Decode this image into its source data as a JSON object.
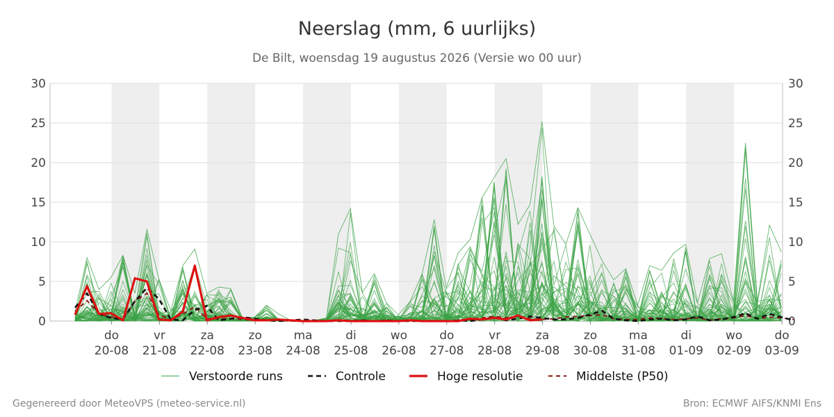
{
  "chart_data": {
    "type": "line",
    "title": "Neerslag (mm, 6 uurlijks)",
    "subtitle": "De Bilt, woensdag 19 augustus 2026 (Versie wo 00 uur)",
    "ylim": [
      0,
      30
    ],
    "y_ticks": [
      0,
      5,
      10,
      15,
      20,
      25,
      30
    ],
    "x_range_days": [
      0,
      14.58
    ],
    "day_ticks": [
      {
        "day": "do",
        "date": "20-08"
      },
      {
        "day": "vr",
        "date": "21-08"
      },
      {
        "day": "za",
        "date": "22-08"
      },
      {
        "day": "zo",
        "date": "23-08"
      },
      {
        "day": "ma",
        "date": "24-08"
      },
      {
        "day": "di",
        "date": "25-08"
      },
      {
        "day": "wo",
        "date": "26-08"
      },
      {
        "day": "do",
        "date": "27-08"
      },
      {
        "day": "vr",
        "date": "28-08"
      },
      {
        "day": "za",
        "date": "29-08"
      },
      {
        "day": "zo",
        "date": "30-08"
      },
      {
        "day": "ma",
        "date": "31-08"
      },
      {
        "day": "di",
        "date": "01-09"
      },
      {
        "day": "wo",
        "date": "02-09"
      },
      {
        "day": "do",
        "date": "03-09"
      }
    ],
    "weekend_shading": true,
    "grid": true,
    "legend_position": "bottom",
    "series": [
      {
        "name": "Verstoorde runs",
        "role": "ensemble",
        "count": 50,
        "color": "#3aa345",
        "envelope_max": [
          1.2,
          8.0,
          4.0,
          5.5,
          8.3,
          3.5,
          11.6,
          5.3,
          1.3,
          7.0,
          9.1,
          3.5,
          4.3,
          4.1,
          0.3,
          0.5,
          2.0,
          0.9,
          0.1,
          0.1,
          0.1,
          0.4,
          11.0,
          14.2,
          3.6,
          6.0,
          2.3,
          0.8,
          2.5,
          6.0,
          12.8,
          4.2,
          8.6,
          10.3,
          15.6,
          18.1,
          20.5,
          12.2,
          14.7,
          25.2,
          12.0,
          9.7,
          14.3,
          11.0,
          7.7,
          5.2,
          6.6,
          2.0,
          7.0,
          6.4,
          8.6,
          9.7,
          2.3,
          7.9,
          8.5,
          2.5,
          22.5,
          2.5,
          12.1,
          8.7
        ]
      },
      {
        "name": "Controle",
        "role": "control",
        "color": "#111111",
        "values": [
          1.7,
          3.5,
          0.9,
          0.4,
          0.2,
          2.5,
          4.2,
          2.8,
          0.2,
          0.1,
          1.4,
          1.9,
          0.1,
          0.3,
          0.5,
          0.3,
          0.1,
          0.0,
          0.1,
          0.2,
          0.1,
          0.0,
          0.0,
          0.0,
          0.1,
          0.0,
          0.1,
          0.0,
          0.0,
          0.0,
          0.0,
          0.0,
          0.1,
          0.0,
          0.2,
          0.5,
          0.1,
          0.3,
          0.6,
          0.4,
          0.2,
          0.2,
          0.4,
          0.8,
          1.3,
          0.3,
          0.1,
          0.0,
          0.2,
          0.3,
          0.1,
          0.2,
          0.6,
          0.1,
          0.2,
          0.5,
          1.0,
          0.3,
          0.9,
          0.5,
          0.1
        ]
      },
      {
        "name": "Hoge resolutie",
        "role": "hires",
        "color": "#dd1111",
        "values": [
          0.8,
          4.4,
          0.9,
          1.0,
          0.1,
          5.4,
          5.0,
          0.2,
          0.1,
          1.2,
          7.0,
          0.1,
          0.5,
          0.7,
          0.4,
          0.1,
          0.1,
          0.2,
          0.1,
          0.0,
          0.0,
          0.0,
          0.1,
          0.0,
          0.0,
          0.0,
          0.0,
          0.0,
          0.1,
          0.0,
          0.0,
          0.0,
          0.0,
          0.3,
          0.2,
          0.4,
          0.2,
          0.7,
          0.1,
          0.2
        ]
      },
      {
        "name": "Middelste (P50)",
        "role": "median",
        "color": "#8b1a1a",
        "values": [
          1.2,
          2.6,
          0.9,
          0.5,
          0.3,
          2.5,
          3.5,
          0.8,
          0.2,
          0.9,
          1.8,
          0.3,
          0.3,
          0.3,
          0.2,
          0.1,
          0.1,
          0.1,
          0.0,
          0.0,
          0.0,
          0.0,
          0.1,
          0.0,
          0.1,
          0.0,
          0.1,
          0.0,
          0.0,
          0.0,
          0.1,
          0.0,
          0.1,
          0.2,
          0.4,
          0.6,
          0.4,
          0.6,
          0.3,
          0.2,
          0.3,
          0.5,
          0.6,
          0.7,
          0.8,
          0.3,
          0.2,
          0.2,
          0.4,
          0.3,
          0.2,
          0.3,
          0.4,
          0.1,
          0.3,
          0.4,
          0.7,
          0.3,
          0.5,
          0.4,
          0.2
        ]
      }
    ]
  },
  "legend": [
    {
      "label": "Verstoorde runs",
      "key": "ensemble"
    },
    {
      "label": "Controle",
      "key": "control"
    },
    {
      "label": "Hoge resolutie",
      "key": "hires"
    },
    {
      "label": "Middelste (P50)",
      "key": "median"
    }
  ],
  "footer": {
    "left": "Gegenereerd door MeteoVPS (meteo-service.nl)",
    "right": "Bron: ECMWF AIFS/KNMI Ens"
  },
  "colors": {
    "weekend_band": "#eeeeee",
    "grid": "#dddddd"
  }
}
